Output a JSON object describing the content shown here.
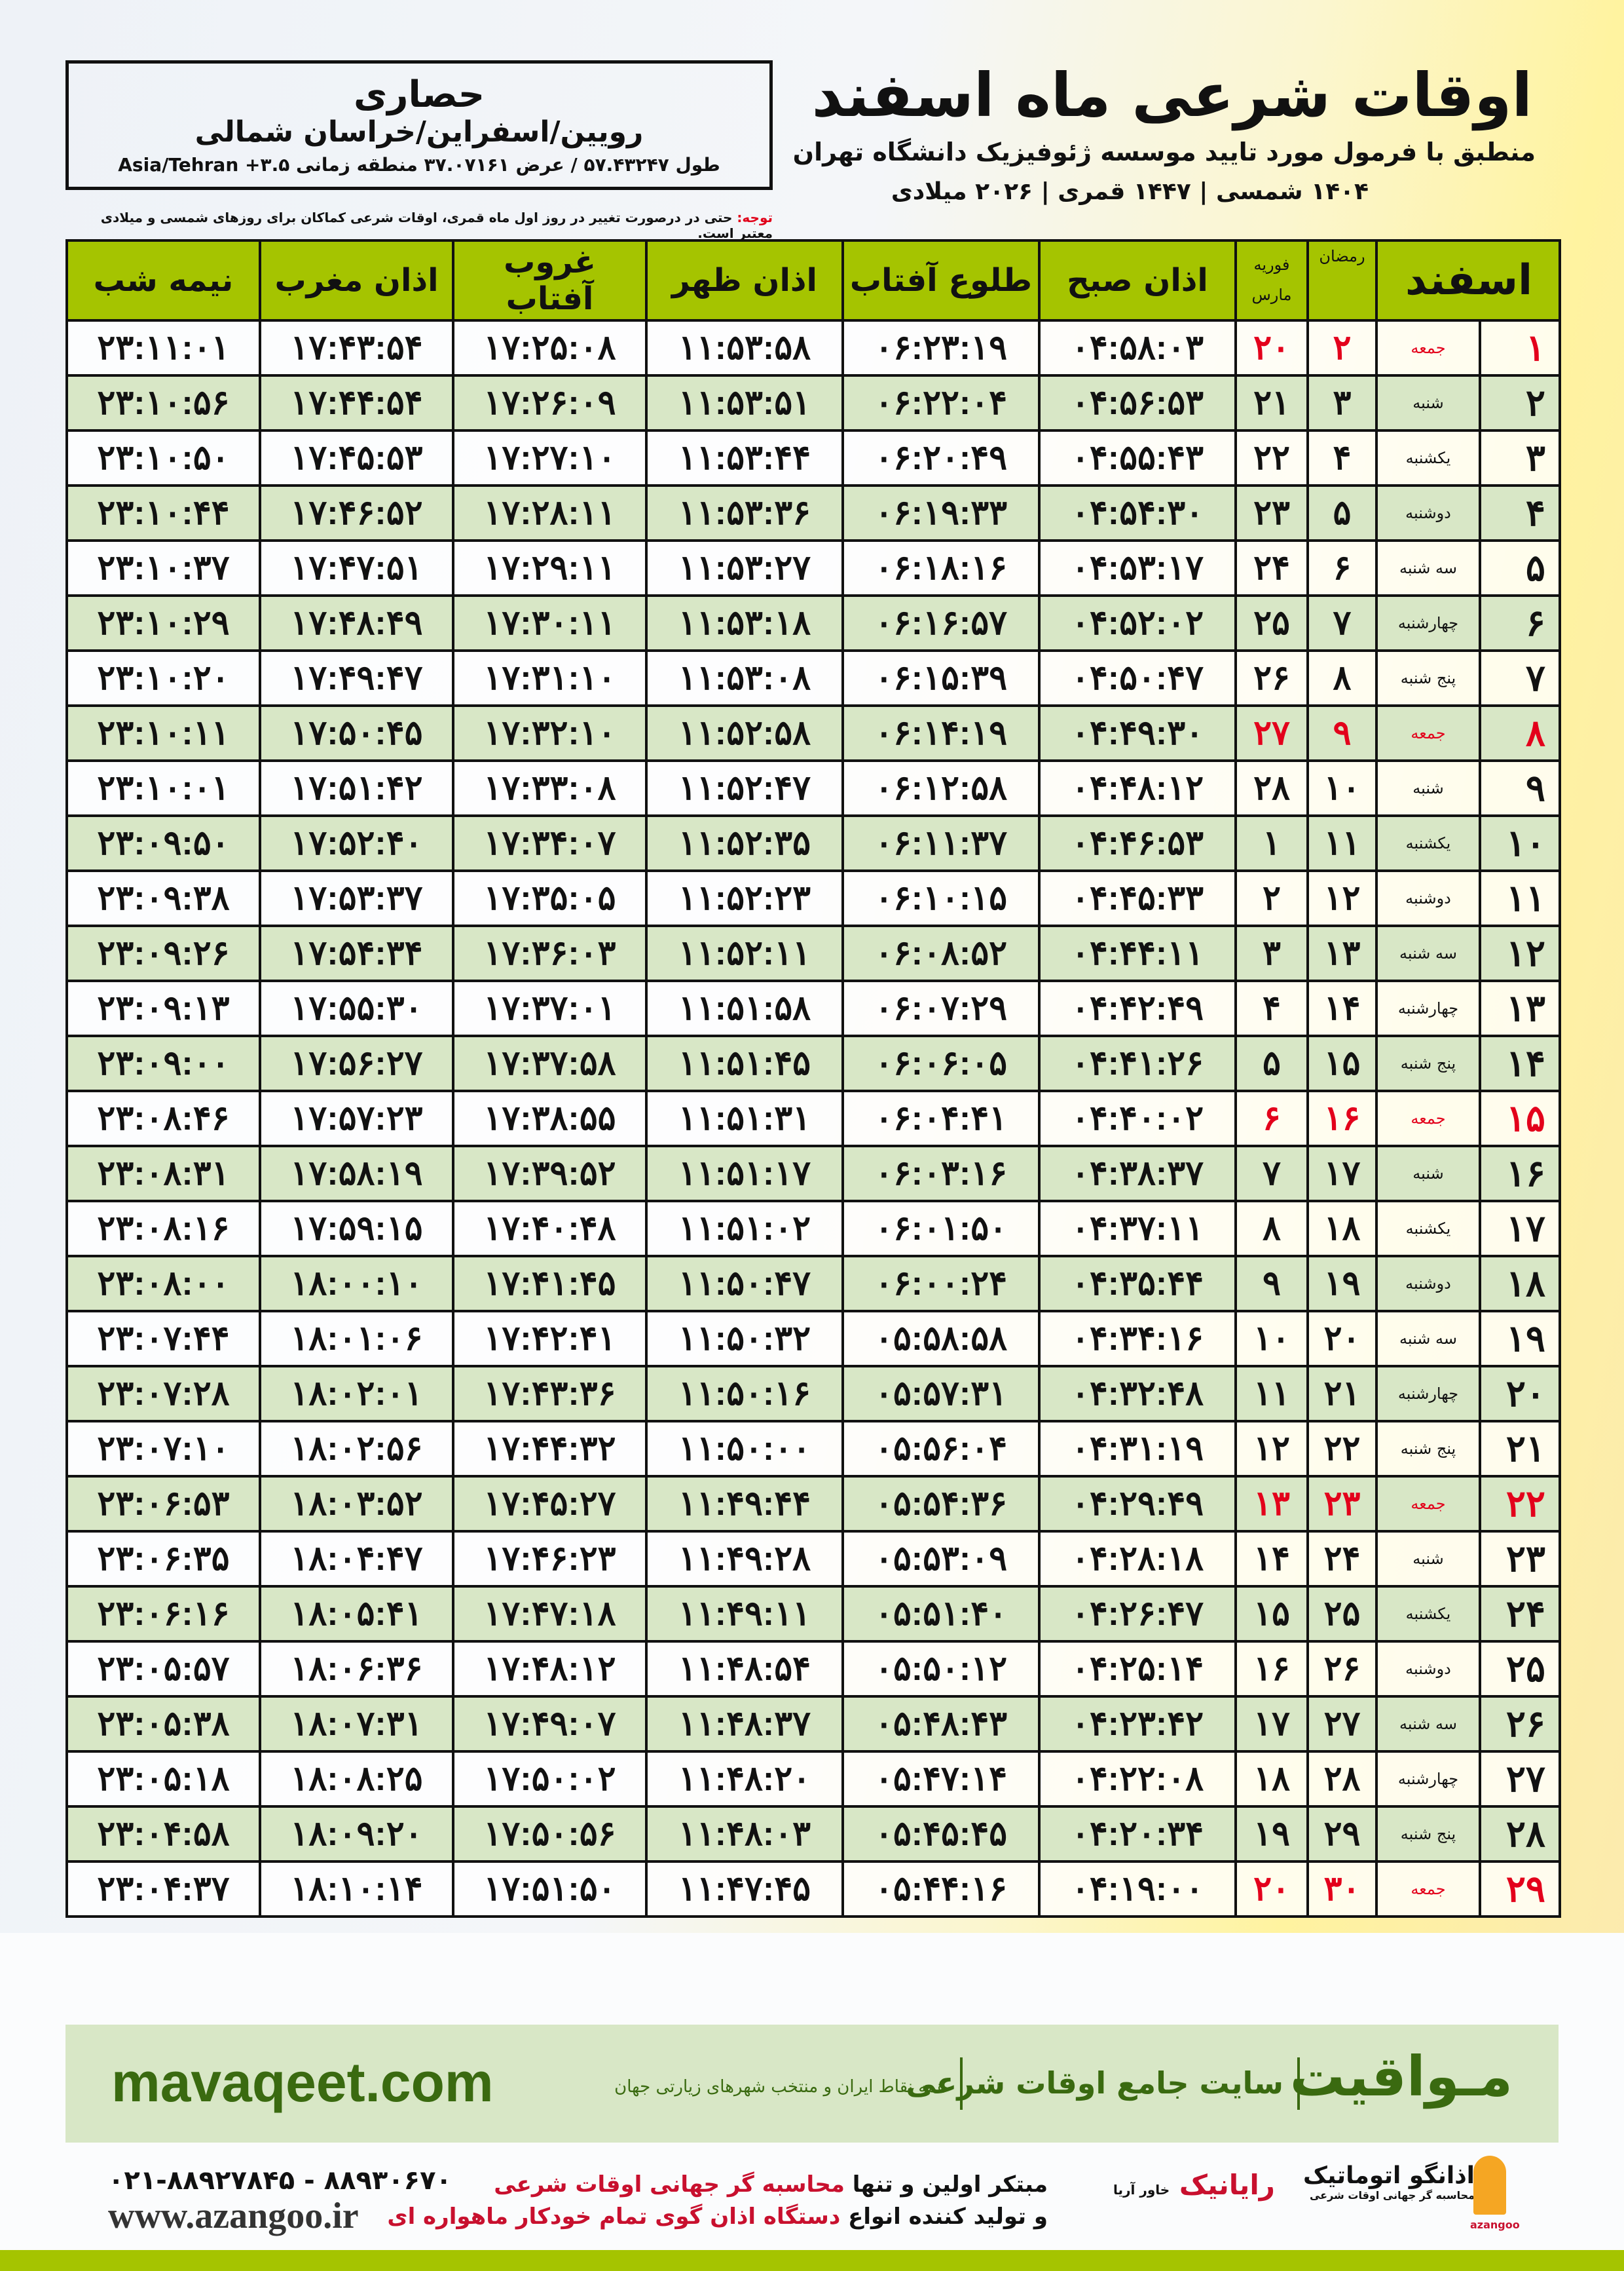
{
  "header": {
    "title": "اوقات شرعی ماه اسفند",
    "subtitle": "منطبق با فرمول مورد تایید موسسه ژئوفیزیک دانشگاه تهران",
    "years": "۱۴۰۴ شمسی | ۱۴۴۷ قمری | ۲۰۲۶ میلادی"
  },
  "location": {
    "name": "حصاری",
    "region": "رویین/اسفراین/خراسان شمالی",
    "coords": "طول ۵۷.۴۳۲۴۷ / عرض ۳۷.۰۷۱۶۱ منطقه زمانی ۳.۵+ Asia/Tehran"
  },
  "note": {
    "label": "توجه:",
    "text": "حتی در درصورت تغییر در روز اول ماه قمری، اوقات شرعی کماکان برای روزهای شمسی و میلادی معتبر است."
  },
  "table": {
    "headers": {
      "month": "اسفند",
      "ramadan": "رمضان",
      "greg1": "فوریه",
      "greg2": "مارس",
      "fajr": "اذان صبح",
      "sunrise": "طلوع آفتاب",
      "dhuhr": "اذان ظهر",
      "sunset": "غروب آفتاب",
      "maghrib": "اذان مغرب",
      "midnight": "نیمه شب"
    },
    "holiday_color": "#e3001b",
    "rows": [
      {
        "day": "۱",
        "weekday": "جمعه",
        "ramadan": "۲",
        "greg": "۲۰",
        "fajr": "۰۴:۵۸:۰۳",
        "sunrise": "۰۶:۲۳:۱۹",
        "dhuhr": "۱۱:۵۳:۵۸",
        "sunset": "۱۷:۲۵:۰۸",
        "maghrib": "۱۷:۴۳:۵۴",
        "midnight": "۲۳:۱۱:۰۱",
        "holiday": true
      },
      {
        "day": "۲",
        "weekday": "شنبه",
        "ramadan": "۳",
        "greg": "۲۱",
        "fajr": "۰۴:۵۶:۵۳",
        "sunrise": "۰۶:۲۲:۰۴",
        "dhuhr": "۱۱:۵۳:۵۱",
        "sunset": "۱۷:۲۶:۰۹",
        "maghrib": "۱۷:۴۴:۵۴",
        "midnight": "۲۳:۱۰:۵۶"
      },
      {
        "day": "۳",
        "weekday": "یکشنبه",
        "ramadan": "۴",
        "greg": "۲۲",
        "fajr": "۰۴:۵۵:۴۳",
        "sunrise": "۰۶:۲۰:۴۹",
        "dhuhr": "۱۱:۵۳:۴۴",
        "sunset": "۱۷:۲۷:۱۰",
        "maghrib": "۱۷:۴۵:۵۳",
        "midnight": "۲۳:۱۰:۵۰"
      },
      {
        "day": "۴",
        "weekday": "دوشنبه",
        "ramadan": "۵",
        "greg": "۲۳",
        "fajr": "۰۴:۵۴:۳۰",
        "sunrise": "۰۶:۱۹:۳۳",
        "dhuhr": "۱۱:۵۳:۳۶",
        "sunset": "۱۷:۲۸:۱۱",
        "maghrib": "۱۷:۴۶:۵۲",
        "midnight": "۲۳:۱۰:۴۴"
      },
      {
        "day": "۵",
        "weekday": "سه شنبه",
        "ramadan": "۶",
        "greg": "۲۴",
        "fajr": "۰۴:۵۳:۱۷",
        "sunrise": "۰۶:۱۸:۱۶",
        "dhuhr": "۱۱:۵۳:۲۷",
        "sunset": "۱۷:۲۹:۱۱",
        "maghrib": "۱۷:۴۷:۵۱",
        "midnight": "۲۳:۱۰:۳۷"
      },
      {
        "day": "۶",
        "weekday": "چهارشنبه",
        "ramadan": "۷",
        "greg": "۲۵",
        "fajr": "۰۴:۵۲:۰۲",
        "sunrise": "۰۶:۱۶:۵۷",
        "dhuhr": "۱۱:۵۳:۱۸",
        "sunset": "۱۷:۳۰:۱۱",
        "maghrib": "۱۷:۴۸:۴۹",
        "midnight": "۲۳:۱۰:۲۹"
      },
      {
        "day": "۷",
        "weekday": "پنج شنبه",
        "ramadan": "۸",
        "greg": "۲۶",
        "fajr": "۰۴:۵۰:۴۷",
        "sunrise": "۰۶:۱۵:۳۹",
        "dhuhr": "۱۱:۵۳:۰۸",
        "sunset": "۱۷:۳۱:۱۰",
        "maghrib": "۱۷:۴۹:۴۷",
        "midnight": "۲۳:۱۰:۲۰"
      },
      {
        "day": "۸",
        "weekday": "جمعه",
        "ramadan": "۹",
        "greg": "۲۷",
        "fajr": "۰۴:۴۹:۳۰",
        "sunrise": "۰۶:۱۴:۱۹",
        "dhuhr": "۱۱:۵۲:۵۸",
        "sunset": "۱۷:۳۲:۱۰",
        "maghrib": "۱۷:۵۰:۴۵",
        "midnight": "۲۳:۱۰:۱۱",
        "holiday": true
      },
      {
        "day": "۹",
        "weekday": "شنبه",
        "ramadan": "۱۰",
        "greg": "۲۸",
        "fajr": "۰۴:۴۸:۱۲",
        "sunrise": "۰۶:۱۲:۵۸",
        "dhuhr": "۱۱:۵۲:۴۷",
        "sunset": "۱۷:۳۳:۰۸",
        "maghrib": "۱۷:۵۱:۴۲",
        "midnight": "۲۳:۱۰:۰۱"
      },
      {
        "day": "۱۰",
        "weekday": "یکشنبه",
        "ramadan": "۱۱",
        "greg": "۱",
        "fajr": "۰۴:۴۶:۵۳",
        "sunrise": "۰۶:۱۱:۳۷",
        "dhuhr": "۱۱:۵۲:۳۵",
        "sunset": "۱۷:۳۴:۰۷",
        "maghrib": "۱۷:۵۲:۴۰",
        "midnight": "۲۳:۰۹:۵۰"
      },
      {
        "day": "۱۱",
        "weekday": "دوشنبه",
        "ramadan": "۱۲",
        "greg": "۲",
        "fajr": "۰۴:۴۵:۳۳",
        "sunrise": "۰۶:۱۰:۱۵",
        "dhuhr": "۱۱:۵۲:۲۳",
        "sunset": "۱۷:۳۵:۰۵",
        "maghrib": "۱۷:۵۳:۳۷",
        "midnight": "۲۳:۰۹:۳۸"
      },
      {
        "day": "۱۲",
        "weekday": "سه شنبه",
        "ramadan": "۱۳",
        "greg": "۳",
        "fajr": "۰۴:۴۴:۱۱",
        "sunrise": "۰۶:۰۸:۵۲",
        "dhuhr": "۱۱:۵۲:۱۱",
        "sunset": "۱۷:۳۶:۰۳",
        "maghrib": "۱۷:۵۴:۳۴",
        "midnight": "۲۳:۰۹:۲۶"
      },
      {
        "day": "۱۳",
        "weekday": "چهارشنبه",
        "ramadan": "۱۴",
        "greg": "۴",
        "fajr": "۰۴:۴۲:۴۹",
        "sunrise": "۰۶:۰۷:۲۹",
        "dhuhr": "۱۱:۵۱:۵۸",
        "sunset": "۱۷:۳۷:۰۱",
        "maghrib": "۱۷:۵۵:۳۰",
        "midnight": "۲۳:۰۹:۱۳"
      },
      {
        "day": "۱۴",
        "weekday": "پنج شنبه",
        "ramadan": "۱۵",
        "greg": "۵",
        "fajr": "۰۴:۴۱:۲۶",
        "sunrise": "۰۶:۰۶:۰۵",
        "dhuhr": "۱۱:۵۱:۴۵",
        "sunset": "۱۷:۳۷:۵۸",
        "maghrib": "۱۷:۵۶:۲۷",
        "midnight": "۲۳:۰۹:۰۰"
      },
      {
        "day": "۱۵",
        "weekday": "جمعه",
        "ramadan": "۱۶",
        "greg": "۶",
        "fajr": "۰۴:۴۰:۰۲",
        "sunrise": "۰۶:۰۴:۴۱",
        "dhuhr": "۱۱:۵۱:۳۱",
        "sunset": "۱۷:۳۸:۵۵",
        "maghrib": "۱۷:۵۷:۲۳",
        "midnight": "۲۳:۰۸:۴۶",
        "holiday": true
      },
      {
        "day": "۱۶",
        "weekday": "شنبه",
        "ramadan": "۱۷",
        "greg": "۷",
        "fajr": "۰۴:۳۸:۳۷",
        "sunrise": "۰۶:۰۳:۱۶",
        "dhuhr": "۱۱:۵۱:۱۷",
        "sunset": "۱۷:۳۹:۵۲",
        "maghrib": "۱۷:۵۸:۱۹",
        "midnight": "۲۳:۰۸:۳۱"
      },
      {
        "day": "۱۷",
        "weekday": "یکشنبه",
        "ramadan": "۱۸",
        "greg": "۸",
        "fajr": "۰۴:۳۷:۱۱",
        "sunrise": "۰۶:۰۱:۵۰",
        "dhuhr": "۱۱:۵۱:۰۲",
        "sunset": "۱۷:۴۰:۴۸",
        "maghrib": "۱۷:۵۹:۱۵",
        "midnight": "۲۳:۰۸:۱۶"
      },
      {
        "day": "۱۸",
        "weekday": "دوشنبه",
        "ramadan": "۱۹",
        "greg": "۹",
        "fajr": "۰۴:۳۵:۴۴",
        "sunrise": "۰۶:۰۰:۲۴",
        "dhuhr": "۱۱:۵۰:۴۷",
        "sunset": "۱۷:۴۱:۴۵",
        "maghrib": "۱۸:۰۰:۱۰",
        "midnight": "۲۳:۰۸:۰۰"
      },
      {
        "day": "۱۹",
        "weekday": "سه شنبه",
        "ramadan": "۲۰",
        "greg": "۱۰",
        "fajr": "۰۴:۳۴:۱۶",
        "sunrise": "۰۵:۵۸:۵۸",
        "dhuhr": "۱۱:۵۰:۳۲",
        "sunset": "۱۷:۴۲:۴۱",
        "maghrib": "۱۸:۰۱:۰۶",
        "midnight": "۲۳:۰۷:۴۴"
      },
      {
        "day": "۲۰",
        "weekday": "چهارشنبه",
        "ramadan": "۲۱",
        "greg": "۱۱",
        "fajr": "۰۴:۳۲:۴۸",
        "sunrise": "۰۵:۵۷:۳۱",
        "dhuhr": "۱۱:۵۰:۱۶",
        "sunset": "۱۷:۴۳:۳۶",
        "maghrib": "۱۸:۰۲:۰۱",
        "midnight": "۲۳:۰۷:۲۸"
      },
      {
        "day": "۲۱",
        "weekday": "پنج شنبه",
        "ramadan": "۲۲",
        "greg": "۱۲",
        "fajr": "۰۴:۳۱:۱۹",
        "sunrise": "۰۵:۵۶:۰۴",
        "dhuhr": "۱۱:۵۰:۰۰",
        "sunset": "۱۷:۴۴:۳۲",
        "maghrib": "۱۸:۰۲:۵۶",
        "midnight": "۲۳:۰۷:۱۰"
      },
      {
        "day": "۲۲",
        "weekday": "جمعه",
        "ramadan": "۲۳",
        "greg": "۱۳",
        "fajr": "۰۴:۲۹:۴۹",
        "sunrise": "۰۵:۵۴:۳۶",
        "dhuhr": "۱۱:۴۹:۴۴",
        "sunset": "۱۷:۴۵:۲۷",
        "maghrib": "۱۸:۰۳:۵۲",
        "midnight": "۲۳:۰۶:۵۳",
        "holiday": true
      },
      {
        "day": "۲۳",
        "weekday": "شنبه",
        "ramadan": "۲۴",
        "greg": "۱۴",
        "fajr": "۰۴:۲۸:۱۸",
        "sunrise": "۰۵:۵۳:۰۹",
        "dhuhr": "۱۱:۴۹:۲۸",
        "sunset": "۱۷:۴۶:۲۳",
        "maghrib": "۱۸:۰۴:۴۷",
        "midnight": "۲۳:۰۶:۳۵"
      },
      {
        "day": "۲۴",
        "weekday": "یکشنبه",
        "ramadan": "۲۵",
        "greg": "۱۵",
        "fajr": "۰۴:۲۶:۴۷",
        "sunrise": "۰۵:۵۱:۴۰",
        "dhuhr": "۱۱:۴۹:۱۱",
        "sunset": "۱۷:۴۷:۱۸",
        "maghrib": "۱۸:۰۵:۴۱",
        "midnight": "۲۳:۰۶:۱۶"
      },
      {
        "day": "۲۵",
        "weekday": "دوشنبه",
        "ramadan": "۲۶",
        "greg": "۱۶",
        "fajr": "۰۴:۲۵:۱۴",
        "sunrise": "۰۵:۵۰:۱۲",
        "dhuhr": "۱۱:۴۸:۵۴",
        "sunset": "۱۷:۴۸:۱۲",
        "maghrib": "۱۸:۰۶:۳۶",
        "midnight": "۲۳:۰۵:۵۷"
      },
      {
        "day": "۲۶",
        "weekday": "سه شنبه",
        "ramadan": "۲۷",
        "greg": "۱۷",
        "fajr": "۰۴:۲۳:۴۲",
        "sunrise": "۰۵:۴۸:۴۳",
        "dhuhr": "۱۱:۴۸:۳۷",
        "sunset": "۱۷:۴۹:۰۷",
        "maghrib": "۱۸:۰۷:۳۱",
        "midnight": "۲۳:۰۵:۳۸"
      },
      {
        "day": "۲۷",
        "weekday": "چهارشنبه",
        "ramadan": "۲۸",
        "greg": "۱۸",
        "fajr": "۰۴:۲۲:۰۸",
        "sunrise": "۰۵:۴۷:۱۴",
        "dhuhr": "۱۱:۴۸:۲۰",
        "sunset": "۱۷:۵۰:۰۲",
        "maghrib": "۱۸:۰۸:۲۵",
        "midnight": "۲۳:۰۵:۱۸"
      },
      {
        "day": "۲۸",
        "weekday": "پنج شنبه",
        "ramadan": "۲۹",
        "greg": "۱۹",
        "fajr": "۰۴:۲۰:۳۴",
        "sunrise": "۰۵:۴۵:۴۵",
        "dhuhr": "۱۱:۴۸:۰۳",
        "sunset": "۱۷:۵۰:۵۶",
        "maghrib": "۱۸:۰۹:۲۰",
        "midnight": "۲۳:۰۴:۵۸"
      },
      {
        "day": "۲۹",
        "weekday": "جمعه",
        "ramadan": "۳۰",
        "greg": "۲۰",
        "fajr": "۰۴:۱۹:۰۰",
        "sunrise": "۰۵:۴۴:۱۶",
        "dhuhr": "۱۱:۴۷:۴۵",
        "sunset": "۱۷:۵۱:۵۰",
        "maghrib": "۱۸:۱۰:۱۴",
        "midnight": "۲۳:۰۴:۳۷",
        "holiday": true
      }
    ]
  },
  "banner": {
    "brand": "مـواقیت",
    "slogan": "سایت جامع اوقات شرعی",
    "sub": "همه نقاط ایران و منتخب شهرهای زیارتی جهان",
    "site": "mavaqeet.com",
    "color": "#3a6a10"
  },
  "footer": {
    "phone": "۰۲۱-۸۸۹۲۷۸۴۵ - ۸۸۹۳۰۶۷۰",
    "website": "www.azangoo.ir",
    "promo_line1_a": "مبتکر اولین و تنها ",
    "promo_line1_b": "محاسبه گر جهانی اوقات شرعی",
    "promo_line2_a": "و تولید کننده انواع ",
    "promo_line2_b": "دستگاه اذان گوی تمام خودکار ماهواره ای",
    "logo_rayanik": "رایانیک",
    "logo_rayanik_sub": "خاور آریا",
    "logo_azangoo": "اذانگو اتوماتیک",
    "logo_azangoo_sub": "محاسبه گر جهانی اوقات شرعی",
    "logo_azangoo_en": "azangoo"
  }
}
